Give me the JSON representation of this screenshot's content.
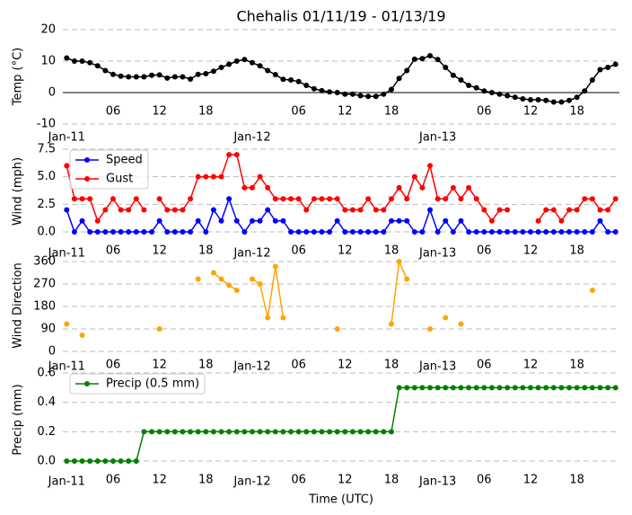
{
  "chart_data": [
    {
      "type": "line",
      "title": "Chehalis 01/11/19 - 01/13/19",
      "ylabel": "Temp (°C)",
      "x": [
        0,
        1,
        2,
        3,
        4,
        5,
        6,
        7,
        8,
        9,
        10,
        11,
        12,
        13,
        14,
        15,
        16,
        17,
        18,
        19,
        20,
        21,
        22,
        23,
        24,
        25,
        26,
        27,
        28,
        29,
        30,
        31,
        32,
        33,
        34,
        35,
        36,
        37,
        38,
        39,
        40,
        41,
        42,
        43,
        44,
        45,
        46,
        47,
        48,
        49,
        50,
        51,
        52,
        53,
        54,
        55,
        56,
        57,
        58,
        59,
        60,
        61,
        62,
        63,
        64,
        65,
        66,
        67,
        68,
        69,
        70,
        71
      ],
      "xlim": [
        -0.5,
        71.5
      ],
      "xticks": [
        {
          "value": 0,
          "label": "Jan-11"
        },
        {
          "value": 6,
          "label": "06"
        },
        12,
        18,
        {
          "value": 24,
          "label": "Jan-12"
        },
        {
          "value": 30,
          "label": "06"
        },
        {
          "value": 36,
          "label": "12"
        },
        {
          "value": 42,
          "label": "18"
        },
        {
          "value": 48,
          "label": "Jan-13"
        },
        {
          "value": 54,
          "label": "06"
        },
        {
          "value": 60,
          "label": "12"
        },
        {
          "value": 66,
          "label": "18"
        }
      ],
      "ylim": [
        -10,
        20
      ],
      "yticks": [
        -10,
        0,
        10,
        20
      ],
      "grid": true,
      "hline": 0,
      "color": "#000000",
      "values": [
        11,
        10,
        10,
        9.5,
        8.5,
        7,
        5.8,
        5.2,
        5,
        5,
        5,
        5.5,
        5.6,
        4.6,
        5,
        5,
        4.3,
        5.8,
        6,
        6.8,
        8,
        9,
        10,
        10.5,
        9.5,
        8.5,
        7,
        5.7,
        4.2,
        4,
        3.5,
        2.3,
        1.2,
        0.6,
        0.2,
        0,
        -0.5,
        -0.5,
        -1,
        -1.2,
        -1.2,
        -0.5,
        1,
        4.5,
        7,
        10.6,
        10.8,
        11.7,
        10.5,
        8,
        5.5,
        4,
        2.3,
        1.5,
        0.5,
        0,
        -0.5,
        -1,
        -1.5,
        -2,
        -2.3,
        -2.3,
        -2.5,
        -3,
        -3,
        -2.5,
        -1.5,
        0.5,
        4,
        7.3,
        8,
        9
      ]
    },
    {
      "type": "line",
      "ylabel": "Wind (mph)",
      "x": [
        0,
        1,
        2,
        3,
        4,
        5,
        6,
        7,
        8,
        9,
        10,
        11,
        12,
        13,
        14,
        15,
        16,
        17,
        18,
        19,
        20,
        21,
        22,
        23,
        24,
        25,
        26,
        27,
        28,
        29,
        30,
        31,
        32,
        33,
        34,
        35,
        36,
        37,
        38,
        39,
        40,
        41,
        42,
        43,
        44,
        45,
        46,
        47,
        48,
        49,
        50,
        51,
        52,
        53,
        54,
        55,
        56,
        57,
        58,
        59,
        60,
        61,
        62,
        63,
        64,
        65,
        66,
        67,
        68,
        69,
        70,
        71
      ],
      "xlim": [
        -0.5,
        71.5
      ],
      "xticks": [
        {
          "value": 0,
          "label": "Jan-11"
        },
        {
          "value": 6,
          "label": "06"
        },
        12,
        18,
        {
          "value": 24,
          "label": "Jan-12"
        },
        {
          "value": 30,
          "label": "06"
        },
        {
          "value": 36,
          "label": "12"
        },
        {
          "value": 42,
          "label": "18"
        },
        {
          "value": 48,
          "label": "Jan-13"
        },
        {
          "value": 54,
          "label": "06"
        },
        {
          "value": 60,
          "label": "12"
        },
        {
          "value": 66,
          "label": "18"
        }
      ],
      "ylim": [
        0,
        7.5
      ],
      "yticks": [
        {
          "value": 0,
          "label": "0.0"
        },
        2.5,
        {
          "value": 5,
          "label": "5.0"
        },
        7.5
      ],
      "grid": true,
      "legend": "upper left",
      "series": [
        {
          "name": "Speed",
          "color": "#0000ff",
          "values": [
            2,
            0,
            1,
            0,
            0,
            0,
            0,
            0,
            0,
            0,
            0,
            0,
            1,
            0,
            0,
            0,
            0,
            1,
            0,
            2,
            1,
            3,
            1,
            0,
            1,
            1,
            2,
            1,
            1,
            0,
            0,
            0,
            0,
            0,
            0,
            1,
            0,
            0,
            0,
            0,
            0,
            0,
            1,
            1,
            1,
            0,
            0,
            2,
            0,
            1,
            0,
            1,
            0,
            0,
            0,
            0,
            0,
            0,
            0,
            0,
            0,
            0,
            0,
            0,
            0,
            0,
            0,
            0,
            0,
            1,
            0,
            0
          ]
        },
        {
          "name": "Gust",
          "color": "#ff0000",
          "values": [
            6,
            3,
            3,
            3,
            1,
            2,
            3,
            2,
            2,
            3,
            2,
            null,
            3,
            2,
            2,
            2,
            3,
            5,
            5,
            5,
            5,
            7,
            7,
            4,
            4,
            5,
            4,
            3,
            3,
            3,
            3,
            2,
            3,
            3,
            3,
            3,
            2,
            2,
            2,
            3,
            2,
            2,
            3,
            4,
            3,
            5,
            4,
            6,
            3,
            3,
            4,
            3,
            4,
            3,
            2,
            1,
            2,
            2,
            null,
            null,
            null,
            1,
            2,
            2,
            1,
            2,
            2,
            3,
            3,
            2,
            2,
            3
          ]
        }
      ]
    },
    {
      "type": "line",
      "ylabel": "Wind Direction",
      "x": [
        0,
        1,
        2,
        3,
        4,
        5,
        6,
        7,
        8,
        9,
        10,
        11,
        12,
        13,
        14,
        15,
        16,
        17,
        18,
        19,
        20,
        21,
        22,
        23,
        24,
        25,
        26,
        27,
        28,
        29,
        30,
        31,
        32,
        33,
        34,
        35,
        36,
        37,
        38,
        39,
        40,
        41,
        42,
        43,
        44,
        45,
        46,
        47,
        48,
        49,
        50,
        51,
        52,
        53,
        54,
        55,
        56,
        57,
        58,
        59,
        60,
        61,
        62,
        63,
        64,
        65,
        66,
        67,
        68,
        69,
        70,
        71
      ],
      "xlim": [
        -0.5,
        71.5
      ],
      "xticks": [
        {
          "value": 0,
          "label": "Jan-11"
        },
        {
          "value": 6,
          "label": "06"
        },
        12,
        18,
        {
          "value": 24,
          "label": "Jan-12"
        },
        {
          "value": 30,
          "label": "06"
        },
        {
          "value": 36,
          "label": "12"
        },
        {
          "value": 42,
          "label": "18"
        },
        {
          "value": 48,
          "label": "Jan-13"
        },
        {
          "value": 54,
          "label": "06"
        },
        {
          "value": 60,
          "label": "12"
        },
        {
          "value": 66,
          "label": "18"
        }
      ],
      "ylim": [
        0,
        360
      ],
      "yticks": [
        0,
        90,
        180,
        270,
        360
      ],
      "grid": true,
      "color": "#ffa500",
      "values": [
        110,
        null,
        65,
        null,
        null,
        null,
        null,
        null,
        null,
        null,
        null,
        null,
        90,
        null,
        null,
        null,
        null,
        290,
        null,
        315,
        290,
        265,
        245,
        null,
        290,
        270,
        135,
        340,
        135,
        null,
        null,
        null,
        null,
        null,
        null,
        90,
        null,
        null,
        null,
        null,
        null,
        null,
        110,
        360,
        290,
        null,
        null,
        90,
        null,
        135,
        null,
        110,
        null,
        null,
        null,
        null,
        null,
        null,
        null,
        null,
        null,
        null,
        null,
        null,
        null,
        null,
        null,
        null,
        245,
        null,
        null,
        null
      ]
    },
    {
      "type": "line",
      "ylabel": "Precip (mm)",
      "xlabel": "Time (UTC)",
      "x": [
        0,
        1,
        2,
        3,
        4,
        5,
        6,
        7,
        8,
        9,
        10,
        11,
        12,
        13,
        14,
        15,
        16,
        17,
        18,
        19,
        20,
        21,
        22,
        23,
        24,
        25,
        26,
        27,
        28,
        29,
        30,
        31,
        32,
        33,
        34,
        35,
        36,
        37,
        38,
        39,
        40,
        41,
        42,
        43,
        44,
        45,
        46,
        47,
        48,
        49,
        50,
        51,
        52,
        53,
        54,
        55,
        56,
        57,
        58,
        59,
        60,
        61,
        62,
        63,
        64,
        65,
        66,
        67,
        68,
        69,
        70,
        71
      ],
      "xlim": [
        -0.5,
        71.5
      ],
      "xticks": [
        {
          "value": 0,
          "label": "Jan-11"
        },
        {
          "value": 6,
          "label": "06"
        },
        12,
        18,
        {
          "value": 24,
          "label": "Jan-12"
        },
        {
          "value": 30,
          "label": "06"
        },
        {
          "value": 36,
          "label": "12"
        },
        {
          "value": 42,
          "label": "18"
        },
        {
          "value": 48,
          "label": "Jan-13"
        },
        {
          "value": 54,
          "label": "06"
        },
        {
          "value": 60,
          "label": "12"
        },
        {
          "value": 66,
          "label": "18"
        }
      ],
      "ylim": [
        0,
        0.6
      ],
      "yticks": [
        {
          "value": 0,
          "label": "0.0"
        },
        0.2,
        0.4,
        0.6
      ],
      "grid": true,
      "legend": "upper left",
      "series": [
        {
          "name": "Precip (0.5 mm)",
          "color": "#008000",
          "values": [
            0,
            0,
            0,
            0,
            0,
            0,
            0,
            0,
            0,
            0,
            0.2,
            0.2,
            0.2,
            0.2,
            0.2,
            0.2,
            0.2,
            0.2,
            0.2,
            0.2,
            0.2,
            0.2,
            0.2,
            0.2,
            0.2,
            0.2,
            0.2,
            0.2,
            0.2,
            0.2,
            0.2,
            0.2,
            0.2,
            0.2,
            0.2,
            0.2,
            0.2,
            0.2,
            0.2,
            0.2,
            0.2,
            0.2,
            0.2,
            0.5,
            0.5,
            0.5,
            0.5,
            0.5,
            0.5,
            0.5,
            0.5,
            0.5,
            0.5,
            0.5,
            0.5,
            0.5,
            0.5,
            0.5,
            0.5,
            0.5,
            0.5,
            0.5,
            0.5,
            0.5,
            0.5,
            0.5,
            0.5,
            0.5,
            0.5,
            0.5,
            0.5,
            0.5
          ]
        }
      ]
    }
  ]
}
